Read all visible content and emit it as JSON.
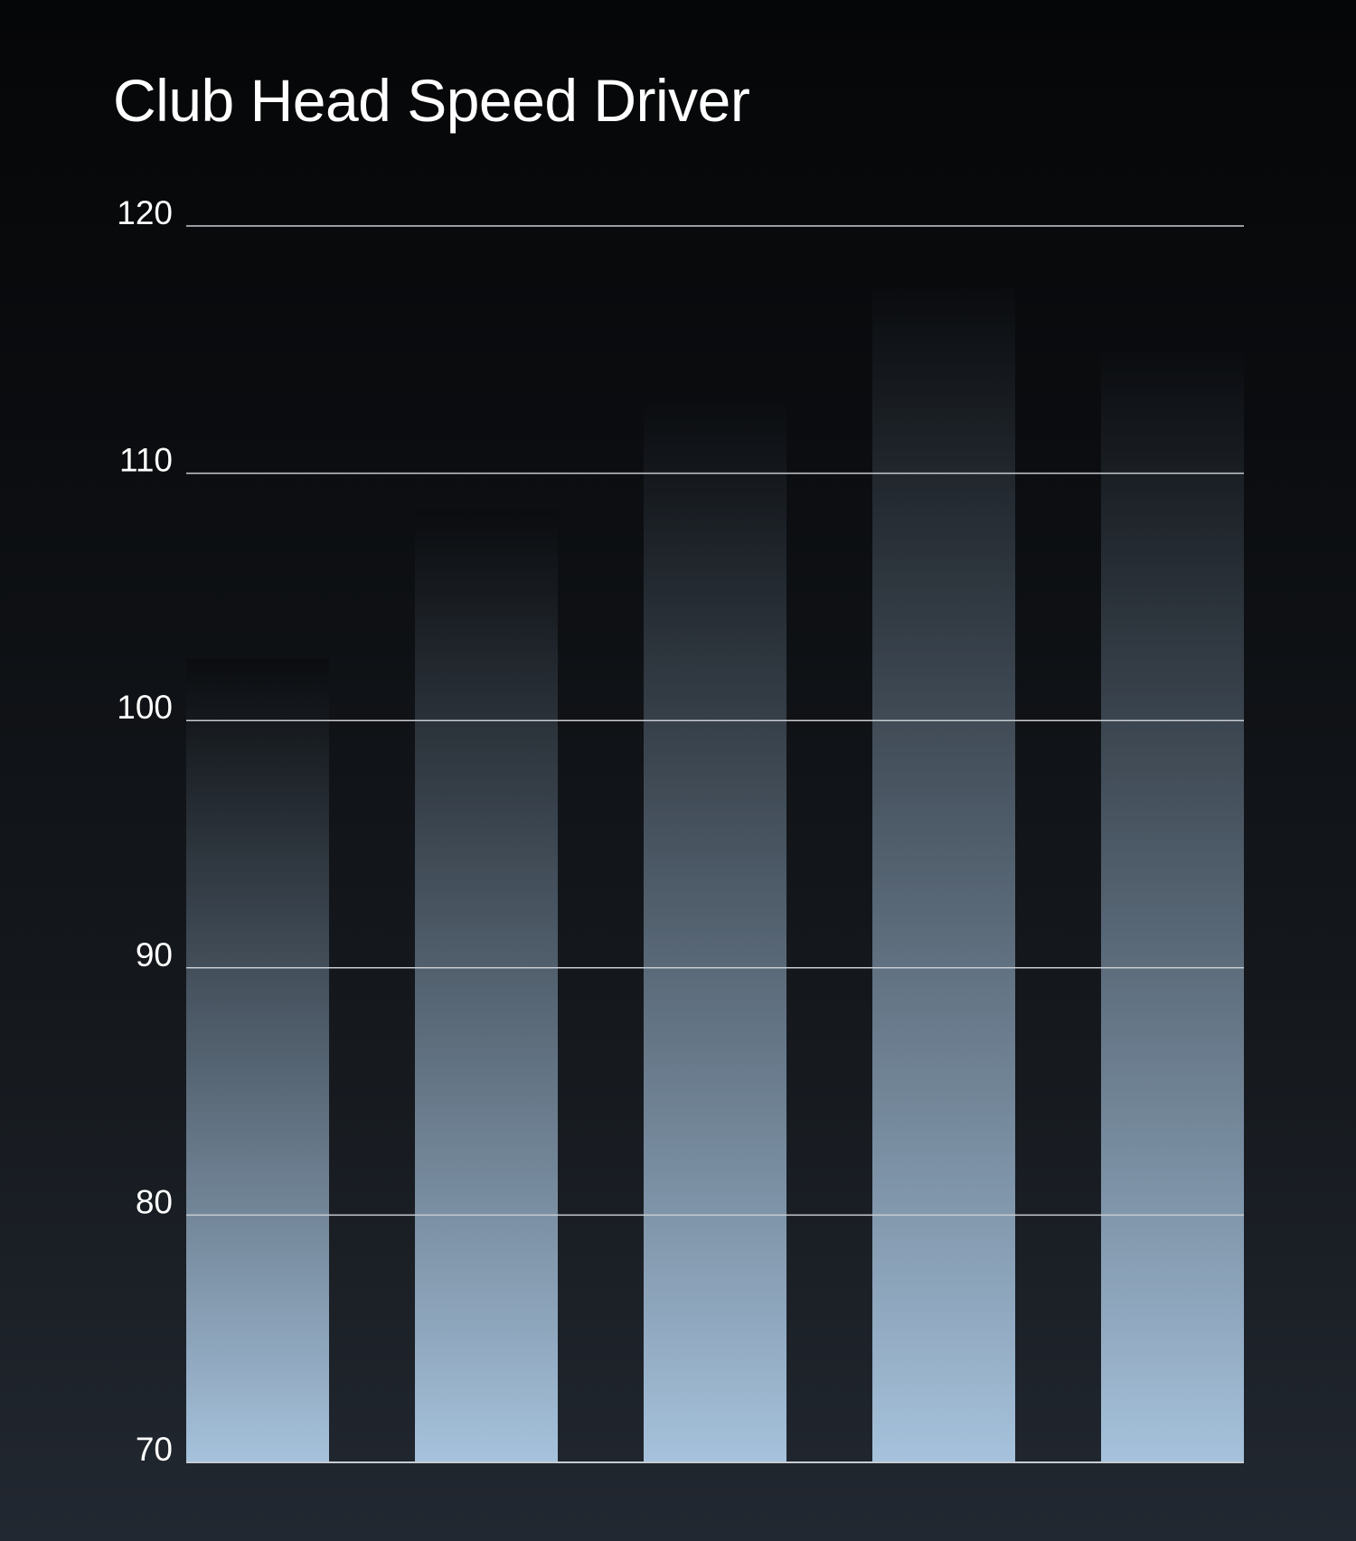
{
  "chart_data": {
    "type": "bar",
    "title": "Club Head Speed Driver",
    "xlabel": "",
    "ylabel": "",
    "categories": [
      "",
      "",
      "",
      "",
      ""
    ],
    "values": [
      102.5,
      108.5,
      113,
      117.5,
      115
    ],
    "ylim": [
      70,
      120
    ],
    "yticks": [
      120,
      110,
      100,
      90,
      80,
      70
    ],
    "grid": true,
    "legend": "none",
    "colors": {
      "background_top": "#050607",
      "background_bottom": "#222831",
      "bar_top": "#0a0c0f",
      "bar_bottom": "#a6c2dc",
      "gridline": "#c8ccd2"
    }
  }
}
